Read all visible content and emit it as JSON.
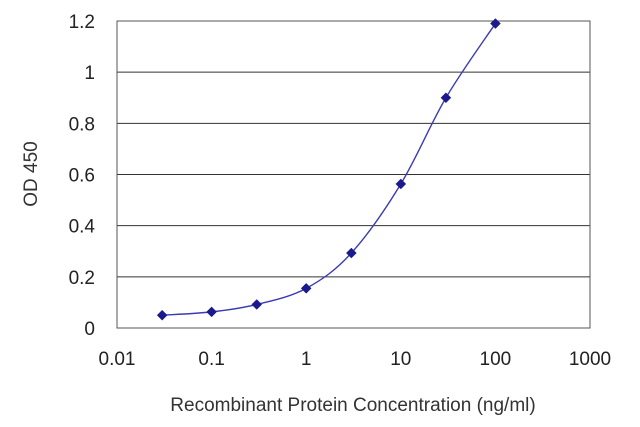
{
  "chart_data": {
    "type": "line",
    "xlabel": "Recombinant Protein Concentration (ng/ml)",
    "ylabel": "OD 450",
    "x_scale": "log",
    "xlim": [
      0.01,
      1000
    ],
    "ylim": [
      0,
      1.2
    ],
    "x_ticks": [
      0.01,
      0.1,
      1,
      10,
      100,
      1000
    ],
    "x_tick_labels": [
      "0.01",
      "0.1",
      "1",
      "10",
      "100",
      "1000"
    ],
    "y_ticks": [
      0,
      0.2,
      0.4,
      0.6,
      0.8,
      1,
      1.2
    ],
    "y_tick_labels": [
      "0",
      "0.2",
      "0.4",
      "0.6",
      "0.8",
      "1",
      "1.2"
    ],
    "grid": "horizontal",
    "legend": "none",
    "series": [
      {
        "color": "#1a1a8c",
        "marker": "diamond",
        "x": [
          0.03,
          0.1,
          0.3,
          1,
          3,
          10,
          30,
          100
        ],
        "y": [
          0.05,
          0.063,
          0.092,
          0.155,
          0.293,
          0.563,
          0.9,
          1.19
        ]
      }
    ]
  }
}
